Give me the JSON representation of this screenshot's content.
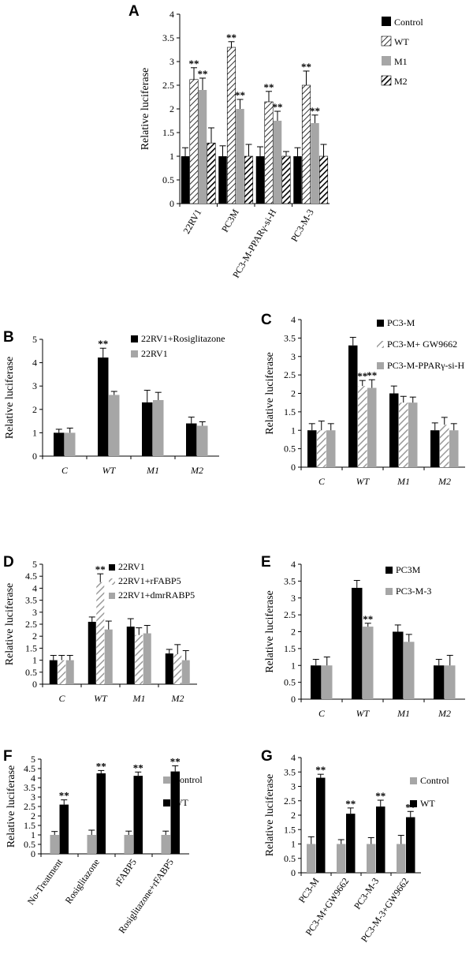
{
  "colors": {
    "black": "#000000",
    "gray": "#a6a6a6",
    "dark_gray": "#7f7f7f",
    "white": "#ffffff"
  },
  "chart_data": [
    {
      "panel": "A",
      "type": "bar",
      "ylabel": "Relative luciferase",
      "ylim": [
        0,
        4
      ],
      "yticks": [
        "0",
        "0.5",
        "1",
        "1.5",
        "2",
        "2.5",
        "3",
        "3.5",
        "4"
      ],
      "categories": [
        "22RV1",
        "PC3M",
        "PC3-M-PPARγ-si-H",
        "PC3-M-3"
      ],
      "tick_rotation": "vertical",
      "series": [
        {
          "name": "Control",
          "style": "black",
          "values": [
            1.0,
            1.0,
            1.0,
            1.0
          ],
          "errors": [
            0.18,
            0.22,
            0.2,
            0.18
          ],
          "stars": [
            "",
            "",
            "",
            ""
          ]
        },
        {
          "name": "WT",
          "style": "diag-white",
          "values": [
            2.62,
            3.3,
            2.15,
            2.5
          ],
          "errors": [
            0.25,
            0.12,
            0.22,
            0.3
          ],
          "stars": [
            "**",
            "**",
            "**",
            "**"
          ]
        },
        {
          "name": "M1",
          "style": "gray",
          "values": [
            2.4,
            2.0,
            1.75,
            1.7
          ],
          "errors": [
            0.25,
            0.2,
            0.2,
            0.17
          ],
          "stars": [
            "**",
            "**",
            "**",
            "**"
          ]
        },
        {
          "name": "M2",
          "style": "diag-black",
          "values": [
            1.28,
            1.0,
            1.0,
            1.0
          ],
          "errors": [
            0.32,
            0.25,
            0.1,
            0.25
          ],
          "stars": [
            "",
            "",
            "",
            ""
          ]
        }
      ]
    },
    {
      "panel": "B",
      "type": "bar",
      "ylabel": "Relative luciferase",
      "ylim": [
        0,
        5
      ],
      "yticks": [
        "0",
        "1",
        "2",
        "3",
        "4",
        "5"
      ],
      "categories": [
        "C",
        "WT",
        "M1",
        "M2"
      ],
      "tick_rotation": "none",
      "series": [
        {
          "name": "22RV1+Rosiglitazone",
          "style": "black",
          "values": [
            1.0,
            4.22,
            2.3,
            1.4
          ],
          "errors": [
            0.15,
            0.4,
            0.52,
            0.27
          ],
          "stars": [
            "",
            "**",
            "",
            ""
          ]
        },
        {
          "name": "22RV1",
          "style": "gray",
          "values": [
            1.0,
            2.62,
            2.4,
            1.3
          ],
          "errors": [
            0.2,
            0.15,
            0.33,
            0.17
          ],
          "stars": [
            "",
            "",
            "",
            ""
          ]
        }
      ]
    },
    {
      "panel": "C",
      "type": "bar",
      "ylabel": "Relative luciferase",
      "ylim": [
        0,
        4
      ],
      "yticks": [
        "0",
        "0.5",
        "1",
        "1.5",
        "2",
        "2.5",
        "3",
        "3.5",
        "4"
      ],
      "categories": [
        "C",
        "WT",
        "M1",
        "M2"
      ],
      "tick_rotation": "none",
      "series": [
        {
          "name": "PC3-M",
          "style": "black",
          "values": [
            1.0,
            3.3,
            2.0,
            1.0
          ],
          "errors": [
            0.18,
            0.22,
            0.2,
            0.2
          ],
          "stars": [
            "",
            "",
            "",
            ""
          ]
        },
        {
          "name": "PC3-M+ GW9662",
          "style": "diag-gray",
          "values": [
            1.0,
            2.2,
            1.75,
            1.15
          ],
          "errors": [
            0.25,
            0.15,
            0.17,
            0.2
          ],
          "stars": [
            "",
            "**",
            "",
            ""
          ]
        },
        {
          "name": "PC3-M-PPARγ-si-H",
          "style": "gray",
          "values": [
            1.0,
            2.15,
            1.75,
            1.0
          ],
          "errors": [
            0.18,
            0.22,
            0.15,
            0.18
          ],
          "stars": [
            "",
            "**",
            "",
            ""
          ]
        }
      ]
    },
    {
      "panel": "D",
      "type": "bar",
      "ylabel": "Relative luciferase",
      "ylim": [
        0,
        5
      ],
      "yticks": [
        "0",
        "0.5",
        "1",
        "1.5",
        "2",
        "2.5",
        "3",
        "3.5",
        "4",
        "4.5",
        "5"
      ],
      "categories": [
        "C",
        "WT",
        "M1",
        "M2"
      ],
      "tick_rotation": "none",
      "series": [
        {
          "name": "22RV1",
          "style": "black",
          "values": [
            1.0,
            2.6,
            2.4,
            1.28
          ],
          "errors": [
            0.2,
            0.2,
            0.33,
            0.17
          ],
          "stars": [
            "",
            "",
            "",
            ""
          ]
        },
        {
          "name": "22RV1+rFABP5",
          "style": "diag-gray",
          "values": [
            1.0,
            4.25,
            2.05,
            1.25
          ],
          "errors": [
            0.2,
            0.35,
            0.3,
            0.4
          ],
          "stars": [
            "",
            "**",
            "",
            ""
          ]
        },
        {
          "name": "22RV1+dmrRABP5",
          "style": "gray",
          "values": [
            1.0,
            2.28,
            2.12,
            1.0
          ],
          "errors": [
            0.2,
            0.35,
            0.33,
            0.4
          ],
          "stars": [
            "",
            "",
            "",
            ""
          ]
        }
      ]
    },
    {
      "panel": "E",
      "type": "bar",
      "ylabel": "Relative luciferase",
      "ylim": [
        0,
        4
      ],
      "yticks": [
        "0",
        "0.5",
        "1",
        "1.5",
        "2",
        "2.5",
        "3",
        "3.5",
        "4"
      ],
      "categories": [
        "C",
        "WT",
        "M1",
        "M2"
      ],
      "tick_rotation": "none",
      "series": [
        {
          "name": "PC3M",
          "style": "black",
          "values": [
            1.0,
            3.3,
            2.0,
            1.0
          ],
          "errors": [
            0.18,
            0.22,
            0.2,
            0.18
          ],
          "stars": [
            "",
            "",
            "",
            ""
          ]
        },
        {
          "name": "PC3-M-3",
          "style": "gray",
          "values": [
            1.0,
            2.15,
            1.7,
            1.0
          ],
          "errors": [
            0.25,
            0.1,
            0.22,
            0.3
          ],
          "stars": [
            "",
            "**",
            "",
            ""
          ]
        }
      ]
    },
    {
      "panel": "F",
      "type": "bar",
      "ylabel": "Relative luciferase",
      "ylim": [
        0,
        5
      ],
      "yticks": [
        "0",
        "0.5",
        "1",
        "1.5",
        "2",
        "2.5",
        "3",
        "3.5",
        "4",
        "4.5",
        "5"
      ],
      "categories": [
        "No-Treatment",
        "Rosiglitazone",
        "rFABP5",
        "Rosiglitazone+rFABP5"
      ],
      "tick_rotation": "diagonal",
      "series": [
        {
          "name": "Control",
          "style": "gray",
          "values": [
            1.0,
            1.0,
            1.0,
            1.0
          ],
          "errors": [
            0.18,
            0.25,
            0.2,
            0.2
          ],
          "stars": [
            "",
            "",
            "",
            ""
          ]
        },
        {
          "name": "WT",
          "style": "black",
          "values": [
            2.6,
            4.25,
            4.12,
            4.35
          ],
          "errors": [
            0.25,
            0.15,
            0.2,
            0.3
          ],
          "stars": [
            "**",
            "**",
            "**",
            "**"
          ]
        }
      ]
    },
    {
      "panel": "G",
      "type": "bar",
      "ylabel": "Relative luciferase",
      "ylim": [
        0,
        4
      ],
      "yticks": [
        "0",
        "0.5",
        "1",
        "1.5",
        "2",
        "2.5",
        "3",
        "3.5",
        "4"
      ],
      "categories": [
        "PC3-M",
        "PC3-M+GW9662",
        "PC3-M-3",
        "PC3-M-3+GW9662"
      ],
      "tick_rotation": "diagonal",
      "series": [
        {
          "name": "Control",
          "style": "gray",
          "values": [
            1.0,
            1.0,
            1.0,
            1.0
          ],
          "errors": [
            0.25,
            0.15,
            0.22,
            0.3
          ],
          "stars": [
            "",
            "",
            "",
            ""
          ]
        },
        {
          "name": "WT",
          "style": "black",
          "values": [
            3.3,
            2.05,
            2.3,
            1.93
          ],
          "errors": [
            0.12,
            0.2,
            0.22,
            0.2
          ],
          "stars": [
            "**",
            "**",
            "**",
            "**"
          ]
        }
      ]
    }
  ]
}
